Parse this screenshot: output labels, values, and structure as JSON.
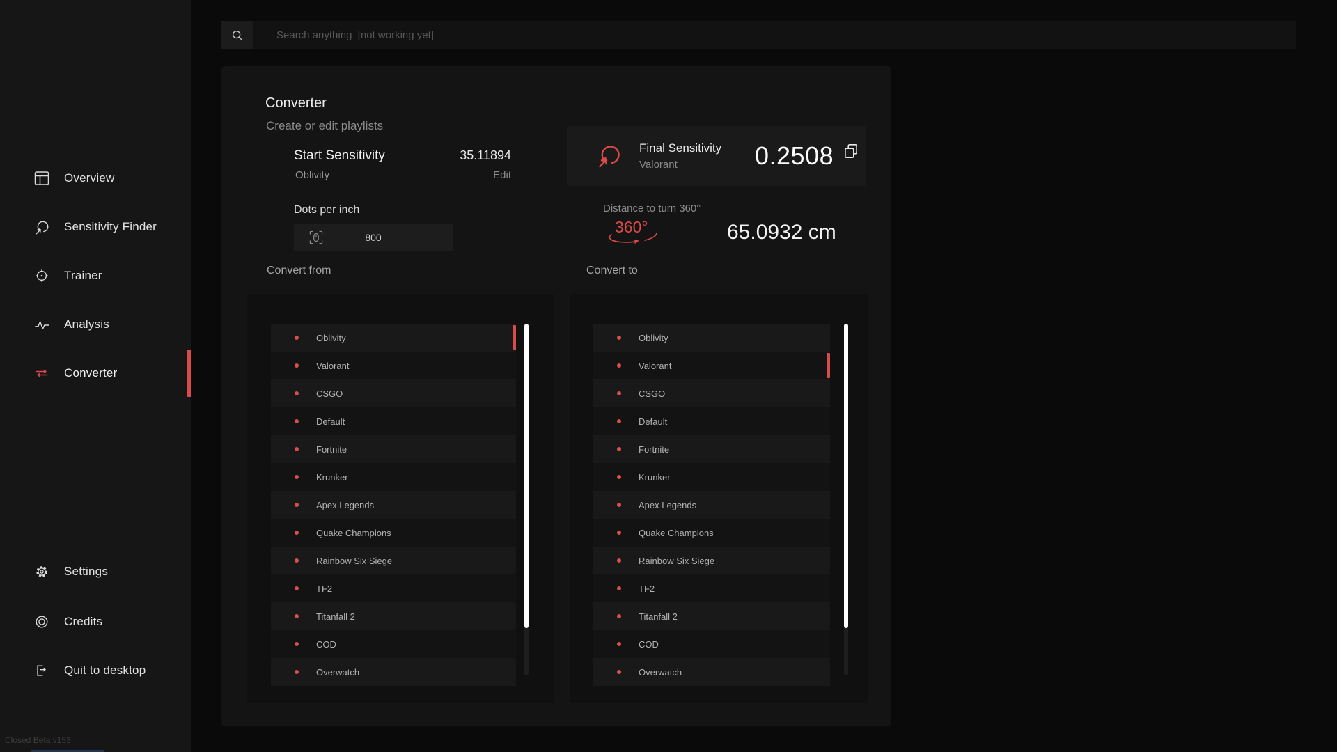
{
  "app": {
    "version_label": "Closed Beta v153"
  },
  "search": {
    "placeholder": "Search anything  [not working yet]"
  },
  "sidebar": {
    "items": [
      {
        "label": "Overview",
        "icon": "layout-icon"
      },
      {
        "label": "Sensitivity Finder",
        "icon": "sensitivity-icon"
      },
      {
        "label": "Trainer",
        "icon": "crosshair-icon"
      },
      {
        "label": "Analysis",
        "icon": "pulse-icon"
      },
      {
        "label": "Converter",
        "icon": "convert-arrows-icon",
        "active": true
      }
    ],
    "footer_items": [
      {
        "label": "Settings",
        "icon": "gear-icon"
      },
      {
        "label": "Credits",
        "icon": "circle-icon"
      },
      {
        "label": "Quit to desktop",
        "icon": "exit-icon"
      }
    ]
  },
  "converter": {
    "title": "Converter",
    "subtitle": "Create or edit playlists",
    "start": {
      "label": "Start Sensitivity",
      "game": "Oblivity",
      "value": "35.11894",
      "edit_label": "Edit"
    },
    "dpi": {
      "label": "Dots per inch",
      "value": "800"
    },
    "final": {
      "label": "Final Sensitivity",
      "game": "Valorant",
      "value": "0.2508"
    },
    "distance": {
      "label": "Distance to turn 360°",
      "icon_text": "360°",
      "value": "65.0932 cm"
    },
    "convert_from_label": "Convert from",
    "convert_to_label": "Convert to",
    "games": [
      "Oblivity",
      "Valorant",
      "CSGO",
      "Default",
      "Fortnite",
      "Krunker",
      "Apex Legends",
      "Quake Champions",
      "Rainbow Six Siege",
      "TF2",
      "Titanfall 2",
      "COD",
      "Overwatch"
    ],
    "from_selected_index": 0,
    "to_selected_index": 1
  },
  "colors": {
    "accent_red": "#d94a4a",
    "scrollbar": "#ffffff",
    "card_bg": "#141414",
    "sidebar_bg": "#161616",
    "page_bg": "#0a0a0a"
  }
}
